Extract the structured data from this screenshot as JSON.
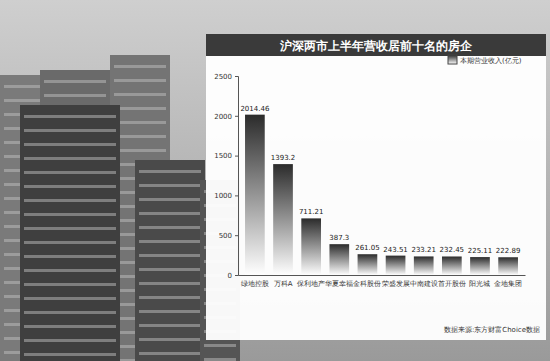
{
  "chart_data": {
    "type": "bar",
    "title": "沪深两市上半年营收居前十名的房企",
    "categories": [
      "绿地控股",
      "万科A",
      "保利地产",
      "华夏幸福",
      "金科股份",
      "荣盛发展",
      "中南建设",
      "首开股份",
      "阳光城",
      "金地集团"
    ],
    "series": [
      {
        "name": "本期营业收入(亿元)",
        "color": "#2b2b2b",
        "values": [
          2014.46,
          1393.2,
          711.21,
          387.3,
          261.05,
          243.51,
          233.21,
          232.45,
          225.11,
          222.89
        ]
      }
    ],
    "ylim": [
      0,
      2500
    ],
    "yticks": [
      0,
      500,
      1000,
      1500,
      2000,
      2500
    ],
    "data_labels": true,
    "legend": "upper right",
    "source": "数据来源:东方财富Choice数据"
  }
}
